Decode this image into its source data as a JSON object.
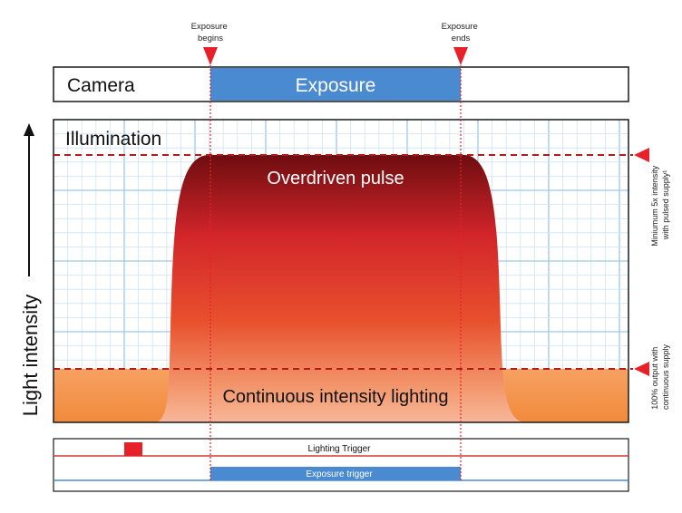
{
  "markers": {
    "exposure_begins": "Exposure\nbegins",
    "exposure_ends": "Exposure\nends"
  },
  "camera": {
    "label": "Camera",
    "exposure_label": "Exposure"
  },
  "illumination": {
    "label": "Illumination",
    "overdriven_label": "Overdriven pulse",
    "continuous_label": "Continuous intensity lighting"
  },
  "y_axis_label": "Light intensity",
  "side_notes": {
    "upper": "Miniumum 5x intensity\nwith pulsed supply¹",
    "lower": "100% output with\ncontinuous supply"
  },
  "triggers": {
    "lighting_label": "Lighting Trigger",
    "exposure_label": "Exposure trigger"
  },
  "colors": {
    "exposure_blue": "#4a8ad0",
    "marker_red": "#e8202a",
    "grid_blue": "#bcd8ef",
    "continuous_orange": "#f39447",
    "pulse_dark": "#7a0f0f",
    "pulse_red": "#d8262b",
    "dashed_red": "#b31b1b"
  }
}
